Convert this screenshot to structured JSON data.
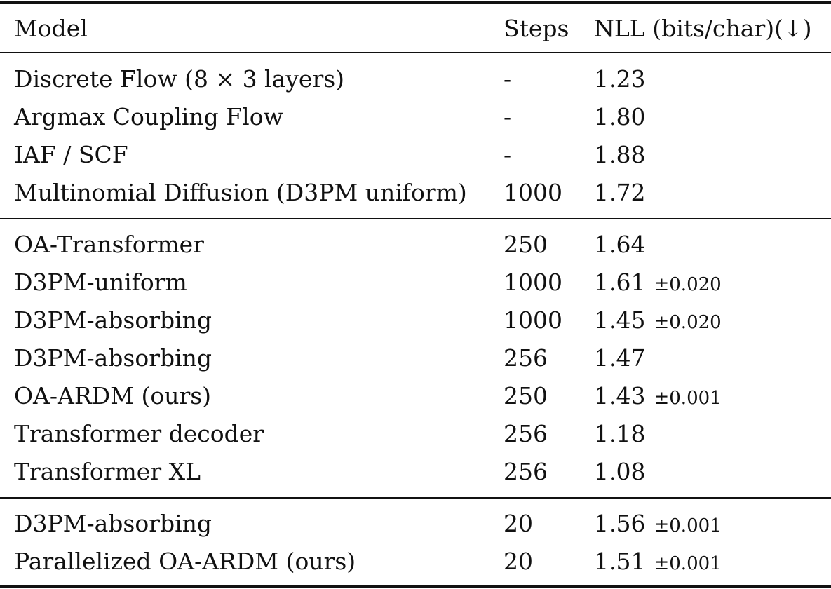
{
  "table": {
    "headers": {
      "model": "Model",
      "steps": "Steps",
      "nll": "NLL (bits/char)(↓)"
    },
    "sections": [
      {
        "rows": [
          {
            "model": "Discrete Flow (8 × 3 layers)",
            "steps": "-",
            "nll": "1.23",
            "std": ""
          },
          {
            "model": "Argmax Coupling Flow",
            "steps": "-",
            "nll": "1.80",
            "std": ""
          },
          {
            "model": "IAF / SCF",
            "steps": "-",
            "nll": "1.88",
            "std": ""
          },
          {
            "model": "Multinomial Diffusion (D3PM uniform)",
            "steps": "1000",
            "nll": "1.72",
            "std": ""
          }
        ]
      },
      {
        "rows": [
          {
            "model": "OA-Transformer",
            "steps": "250",
            "nll": "1.64",
            "std": ""
          },
          {
            "model": "D3PM-uniform",
            "steps": "1000",
            "nll": "1.61",
            "std": "±0.020"
          },
          {
            "model": "D3PM-absorbing",
            "steps": "1000",
            "nll": "1.45",
            "std": "±0.020"
          },
          {
            "model": "D3PM-absorbing",
            "steps": "256",
            "nll": "1.47",
            "std": ""
          },
          {
            "model": "OA-ARDM (ours)",
            "steps": "250",
            "nll": "1.43",
            "std": "±0.001"
          },
          {
            "model": "Transformer decoder",
            "steps": "256",
            "nll": "1.18",
            "std": ""
          },
          {
            "model": "Transformer XL",
            "steps": "256",
            "nll": "1.08",
            "std": ""
          }
        ]
      },
      {
        "rows": [
          {
            "model": "D3PM-absorbing",
            "steps": "20",
            "nll": "1.56",
            "std": "±0.001"
          },
          {
            "model": "Parallelized OA-ARDM (ours)",
            "steps": "20",
            "nll": "1.51",
            "std": "±0.001"
          }
        ]
      }
    ]
  }
}
